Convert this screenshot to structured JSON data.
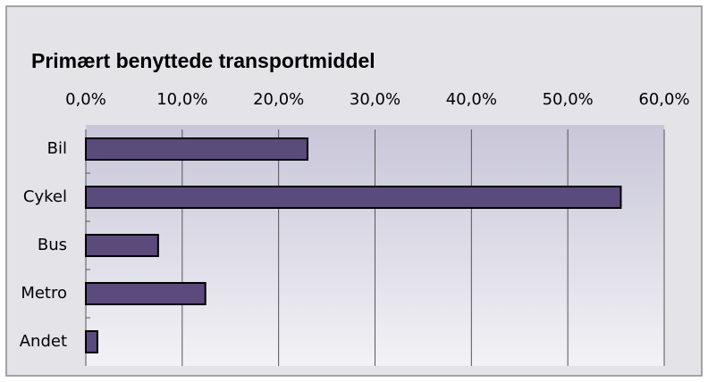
{
  "chart_data": {
    "type": "bar",
    "orientation": "horizontal",
    "title": "Primært benyttede transportmiddel",
    "categories": [
      "Bil",
      "Cykel",
      "Bus",
      "Metro",
      "Andet"
    ],
    "values": [
      23,
      55.5,
      7.5,
      12.4,
      1.2
    ],
    "color": "#5b4a7c",
    "xlim": [
      0,
      60
    ],
    "xticks": [
      {
        "value": 0,
        "label": "0,0%"
      },
      {
        "value": 10,
        "label": "10,0%"
      },
      {
        "value": 20,
        "label": "20,0%"
      },
      {
        "value": 30,
        "label": "30,0%"
      },
      {
        "value": 40,
        "label": "40,0%"
      },
      {
        "value": 50,
        "label": "50,0%"
      },
      {
        "value": 60,
        "label": "60,0%"
      }
    ],
    "grid": true
  }
}
